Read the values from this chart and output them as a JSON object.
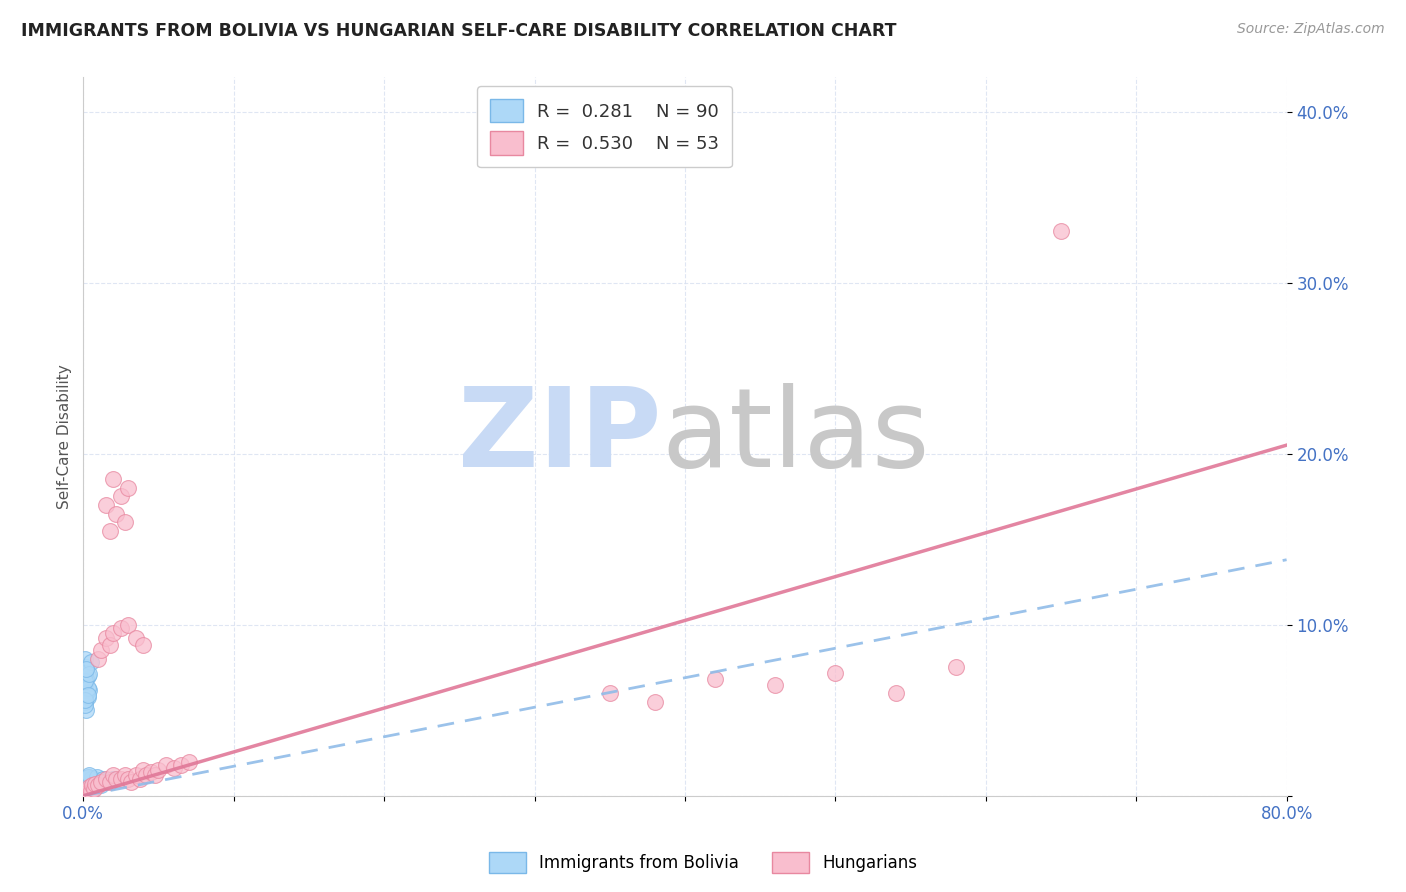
{
  "title": "IMMIGRANTS FROM BOLIVIA VS HUNGARIAN SELF-CARE DISABILITY CORRELATION CHART",
  "source": "Source: ZipAtlas.com",
  "ylabel": "Self-Care Disability",
  "xlim": [
    0.0,
    0.8
  ],
  "ylim": [
    0.0,
    0.42
  ],
  "bolivia_R": 0.281,
  "bolivia_N": 90,
  "hungarian_R": 0.53,
  "hungarian_N": 53,
  "bolivia_color": "#add8f7",
  "bolivia_edge": "#7ab8e8",
  "hungarian_color": "#f9bece",
  "hungarian_edge": "#e888a0",
  "bolivia_line_color": "#90bce8",
  "hungarian_line_color": "#e07898",
  "watermark_zip_color": "#c8daf5",
  "watermark_atlas_color": "#c8c8c8",
  "tick_color": "#4472c4",
  "grid_color": "#d8e0f0",
  "bolivia_x": [
    0.001,
    0.001,
    0.002,
    0.001,
    0.002,
    0.003,
    0.001,
    0.002,
    0.003,
    0.004,
    0.001,
    0.002,
    0.001,
    0.003,
    0.002,
    0.004,
    0.001,
    0.005,
    0.002,
    0.001,
    0.003,
    0.002,
    0.004,
    0.001,
    0.005,
    0.002,
    0.001,
    0.003,
    0.002,
    0.004,
    0.006,
    0.003,
    0.002,
    0.001,
    0.005,
    0.003,
    0.004,
    0.002,
    0.006,
    0.003,
    0.008,
    0.004,
    0.002,
    0.007,
    0.003,
    0.005,
    0.002,
    0.01,
    0.004,
    0.006,
    0.012,
    0.005,
    0.003,
    0.008,
    0.004,
    0.006,
    0.015,
    0.007,
    0.003,
    0.01,
    0.018,
    0.008,
    0.004,
    0.012,
    0.005,
    0.003,
    0.02,
    0.009,
    0.004,
    0.013,
    0.001,
    0.002,
    0.001,
    0.003,
    0.002,
    0.001,
    0.004,
    0.002,
    0.001,
    0.003,
    0.002,
    0.001,
    0.005,
    0.002,
    0.003,
    0.001,
    0.004,
    0.002,
    0.001,
    0.003
  ],
  "bolivia_y": [
    0.001,
    0.002,
    0.001,
    0.003,
    0.001,
    0.002,
    0.003,
    0.001,
    0.002,
    0.002,
    0.003,
    0.001,
    0.004,
    0.002,
    0.003,
    0.002,
    0.004,
    0.002,
    0.003,
    0.005,
    0.002,
    0.004,
    0.002,
    0.005,
    0.003,
    0.003,
    0.006,
    0.003,
    0.004,
    0.003,
    0.004,
    0.005,
    0.006,
    0.003,
    0.004,
    0.005,
    0.004,
    0.005,
    0.005,
    0.006,
    0.005,
    0.006,
    0.007,
    0.006,
    0.007,
    0.005,
    0.008,
    0.007,
    0.007,
    0.006,
    0.006,
    0.007,
    0.008,
    0.007,
    0.008,
    0.006,
    0.008,
    0.009,
    0.01,
    0.008,
    0.009,
    0.01,
    0.011,
    0.009,
    0.01,
    0.011,
    0.01,
    0.011,
    0.012,
    0.01,
    0.055,
    0.06,
    0.065,
    0.07,
    0.075,
    0.08,
    0.062,
    0.068,
    0.072,
    0.058,
    0.05,
    0.053,
    0.078,
    0.06,
    0.063,
    0.067,
    0.071,
    0.074,
    0.056,
    0.059
  ],
  "hungarian_x": [
    0.001,
    0.002,
    0.003,
    0.004,
    0.005,
    0.006,
    0.007,
    0.008,
    0.01,
    0.012,
    0.015,
    0.018,
    0.02,
    0.022,
    0.025,
    0.028,
    0.03,
    0.032,
    0.035,
    0.038,
    0.04,
    0.042,
    0.045,
    0.048,
    0.05,
    0.055,
    0.06,
    0.065,
    0.07,
    0.015,
    0.018,
    0.02,
    0.022,
    0.025,
    0.028,
    0.03,
    0.35,
    0.38,
    0.42,
    0.46,
    0.5,
    0.54,
    0.58,
    0.01,
    0.012,
    0.015,
    0.018,
    0.02,
    0.025,
    0.03,
    0.035,
    0.04,
    0.65
  ],
  "hungarian_y": [
    0.002,
    0.003,
    0.002,
    0.005,
    0.003,
    0.006,
    0.004,
    0.007,
    0.006,
    0.008,
    0.01,
    0.008,
    0.012,
    0.01,
    0.01,
    0.012,
    0.01,
    0.008,
    0.012,
    0.01,
    0.015,
    0.012,
    0.014,
    0.012,
    0.015,
    0.018,
    0.016,
    0.018,
    0.02,
    0.17,
    0.155,
    0.185,
    0.165,
    0.175,
    0.16,
    0.18,
    0.06,
    0.055,
    0.068,
    0.065,
    0.072,
    0.06,
    0.075,
    0.08,
    0.085,
    0.092,
    0.088,
    0.095,
    0.098,
    0.1,
    0.092,
    0.088,
    0.33
  ],
  "bolivia_line": {
    "x0": 0.0,
    "x1": 0.8,
    "y0": 0.0,
    "y1": 0.138
  },
  "hungarian_line": {
    "x0": 0.0,
    "x1": 0.8,
    "y0": 0.0,
    "y1": 0.205
  }
}
